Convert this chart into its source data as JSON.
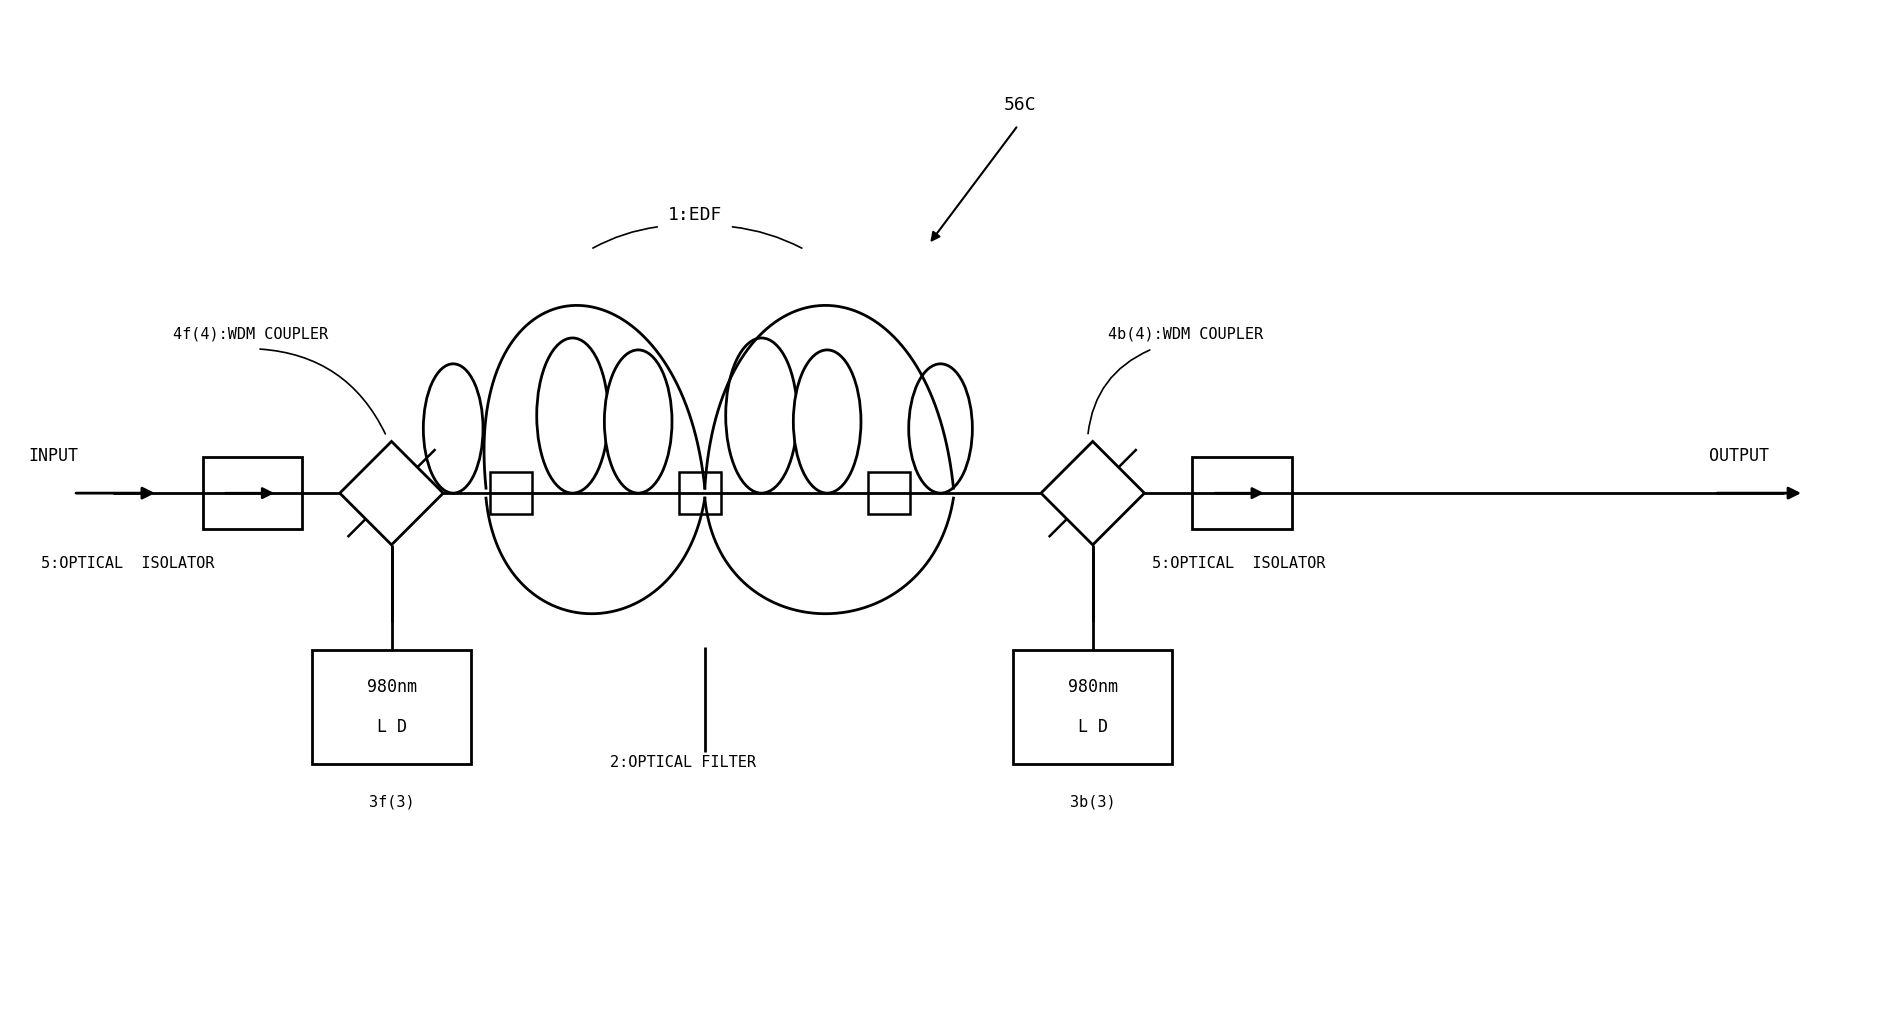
{
  "bg_color": "#ffffff",
  "line_color": "#000000",
  "fig_width": 18.97,
  "fig_height": 10.33,
  "labels": {
    "input": "INPUT",
    "output": "OUTPUT",
    "isolator_left": "5:OPTICAL  ISOLATOR",
    "isolator_right": "5:OPTICAL  ISOLATOR",
    "wdm_left": "4f(4):WDM COUPLER",
    "wdm_right": "4b(4):WDM COUPLER",
    "edf": "1:EDF",
    "optical_filter": "2:OPTICAL FILTER",
    "ld_left": "3f(3)",
    "ld_right": "3b(3)",
    "label_56c": "56C",
    "ld_left_line1": "980nm",
    "ld_left_line2": "L D",
    "ld_right_line1": "980nm",
    "ld_right_line2": "L D"
  }
}
